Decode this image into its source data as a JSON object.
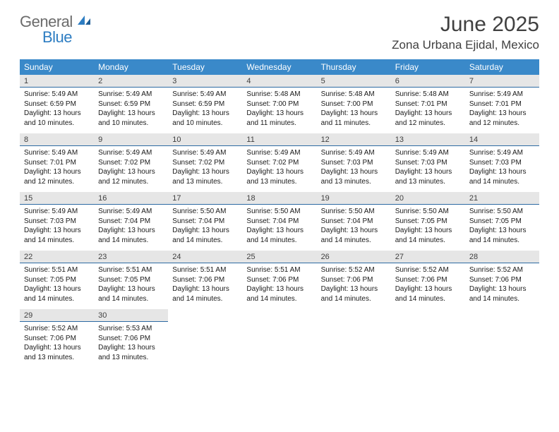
{
  "logo": {
    "part1": "General",
    "part2": "Blue"
  },
  "title": "June 2025",
  "location": "Zona Urbana Ejidal, Mexico",
  "colors": {
    "header_bg": "#3a89c9",
    "header_text": "#ffffff",
    "daynum_bg": "#e6e6e6",
    "daynum_border": "#2d6aa3",
    "body_text": "#1a1a1a",
    "title_text": "#404040",
    "logo_gray": "#6b6b6b",
    "logo_blue": "#2d7dc2"
  },
  "day_names": [
    "Sunday",
    "Monday",
    "Tuesday",
    "Wednesday",
    "Thursday",
    "Friday",
    "Saturday"
  ],
  "weeks": [
    [
      {
        "n": "1",
        "sr": "5:49 AM",
        "ss": "6:59 PM",
        "dl": "13 hours and 10 minutes."
      },
      {
        "n": "2",
        "sr": "5:49 AM",
        "ss": "6:59 PM",
        "dl": "13 hours and 10 minutes."
      },
      {
        "n": "3",
        "sr": "5:49 AM",
        "ss": "6:59 PM",
        "dl": "13 hours and 10 minutes."
      },
      {
        "n": "4",
        "sr": "5:48 AM",
        "ss": "7:00 PM",
        "dl": "13 hours and 11 minutes."
      },
      {
        "n": "5",
        "sr": "5:48 AM",
        "ss": "7:00 PM",
        "dl": "13 hours and 11 minutes."
      },
      {
        "n": "6",
        "sr": "5:48 AM",
        "ss": "7:01 PM",
        "dl": "13 hours and 12 minutes."
      },
      {
        "n": "7",
        "sr": "5:49 AM",
        "ss": "7:01 PM",
        "dl": "13 hours and 12 minutes."
      }
    ],
    [
      {
        "n": "8",
        "sr": "5:49 AM",
        "ss": "7:01 PM",
        "dl": "13 hours and 12 minutes."
      },
      {
        "n": "9",
        "sr": "5:49 AM",
        "ss": "7:02 PM",
        "dl": "13 hours and 12 minutes."
      },
      {
        "n": "10",
        "sr": "5:49 AM",
        "ss": "7:02 PM",
        "dl": "13 hours and 13 minutes."
      },
      {
        "n": "11",
        "sr": "5:49 AM",
        "ss": "7:02 PM",
        "dl": "13 hours and 13 minutes."
      },
      {
        "n": "12",
        "sr": "5:49 AM",
        "ss": "7:03 PM",
        "dl": "13 hours and 13 minutes."
      },
      {
        "n": "13",
        "sr": "5:49 AM",
        "ss": "7:03 PM",
        "dl": "13 hours and 13 minutes."
      },
      {
        "n": "14",
        "sr": "5:49 AM",
        "ss": "7:03 PM",
        "dl": "13 hours and 14 minutes."
      }
    ],
    [
      {
        "n": "15",
        "sr": "5:49 AM",
        "ss": "7:03 PM",
        "dl": "13 hours and 14 minutes."
      },
      {
        "n": "16",
        "sr": "5:49 AM",
        "ss": "7:04 PM",
        "dl": "13 hours and 14 minutes."
      },
      {
        "n": "17",
        "sr": "5:50 AM",
        "ss": "7:04 PM",
        "dl": "13 hours and 14 minutes."
      },
      {
        "n": "18",
        "sr": "5:50 AM",
        "ss": "7:04 PM",
        "dl": "13 hours and 14 minutes."
      },
      {
        "n": "19",
        "sr": "5:50 AM",
        "ss": "7:04 PM",
        "dl": "13 hours and 14 minutes."
      },
      {
        "n": "20",
        "sr": "5:50 AM",
        "ss": "7:05 PM",
        "dl": "13 hours and 14 minutes."
      },
      {
        "n": "21",
        "sr": "5:50 AM",
        "ss": "7:05 PM",
        "dl": "13 hours and 14 minutes."
      }
    ],
    [
      {
        "n": "22",
        "sr": "5:51 AM",
        "ss": "7:05 PM",
        "dl": "13 hours and 14 minutes."
      },
      {
        "n": "23",
        "sr": "5:51 AM",
        "ss": "7:05 PM",
        "dl": "13 hours and 14 minutes."
      },
      {
        "n": "24",
        "sr": "5:51 AM",
        "ss": "7:06 PM",
        "dl": "13 hours and 14 minutes."
      },
      {
        "n": "25",
        "sr": "5:51 AM",
        "ss": "7:06 PM",
        "dl": "13 hours and 14 minutes."
      },
      {
        "n": "26",
        "sr": "5:52 AM",
        "ss": "7:06 PM",
        "dl": "13 hours and 14 minutes."
      },
      {
        "n": "27",
        "sr": "5:52 AM",
        "ss": "7:06 PM",
        "dl": "13 hours and 14 minutes."
      },
      {
        "n": "28",
        "sr": "5:52 AM",
        "ss": "7:06 PM",
        "dl": "13 hours and 14 minutes."
      }
    ],
    [
      {
        "n": "29",
        "sr": "5:52 AM",
        "ss": "7:06 PM",
        "dl": "13 hours and 13 minutes."
      },
      {
        "n": "30",
        "sr": "5:53 AM",
        "ss": "7:06 PM",
        "dl": "13 hours and 13 minutes."
      },
      null,
      null,
      null,
      null,
      null
    ]
  ],
  "labels": {
    "sunrise": "Sunrise:",
    "sunset": "Sunset:",
    "daylight": "Daylight:"
  }
}
